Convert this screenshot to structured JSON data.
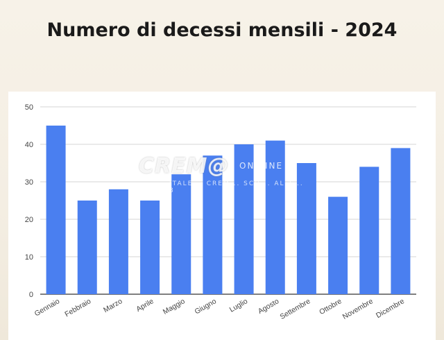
{
  "title": "Numero di decessi mensili - 2024",
  "watermark": {
    "main": "CREM@",
    "sub": "ON LINE",
    "line": "ITALE... CREM... SCO... AL 1... 8"
  },
  "colors": {
    "bar": "#4a7ff0",
    "grid": "#d6d6d6",
    "axis_text": "#444444"
  },
  "chart_data": {
    "type": "bar",
    "title": "Numero di decessi mensili - 2024",
    "categories": [
      "Gennaio",
      "Febbraio",
      "Marzo",
      "Aprile",
      "Maggio",
      "Giugno",
      "Luglio",
      "Agosto",
      "Settembre",
      "Ottobre",
      "Novembre",
      "Dicembre"
    ],
    "values": [
      45,
      25,
      28,
      25,
      32,
      37,
      40,
      41,
      35,
      26,
      34,
      39
    ],
    "ylim": [
      0,
      50
    ],
    "yticks": [
      "0",
      "10",
      "20",
      "30",
      "40",
      "50"
    ],
    "xlabel": "",
    "ylabel": "",
    "grid": true,
    "legend": "none"
  }
}
